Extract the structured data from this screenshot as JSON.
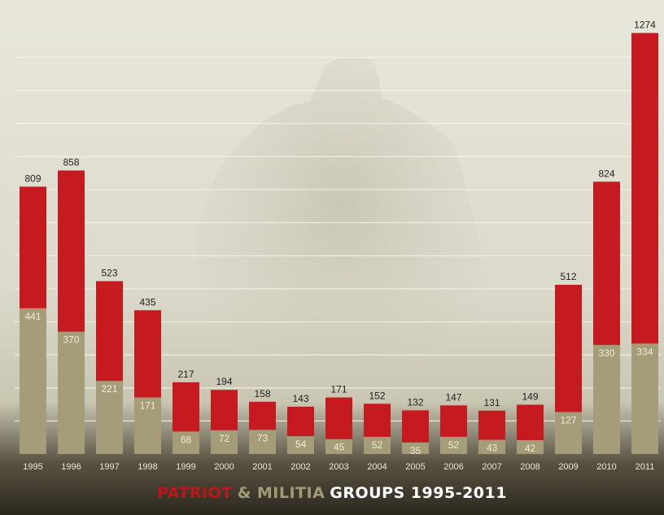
{
  "chart_data": {
    "type": "bar",
    "stacked": true,
    "categories": [
      "1995",
      "1996",
      "1997",
      "1998",
      "1999",
      "2000",
      "2001",
      "2002",
      "2003",
      "2004",
      "2005",
      "2006",
      "2007",
      "2008",
      "2009",
      "2010",
      "2011"
    ],
    "totals": [
      809,
      858,
      523,
      435,
      217,
      194,
      158,
      143,
      171,
      152,
      132,
      147,
      131,
      149,
      512,
      824,
      1274
    ],
    "series": [
      {
        "values": [
          441,
          370,
          221,
          171,
          68,
          72,
          73,
          54,
          45,
          52,
          35,
          52,
          43,
          42,
          127,
          330,
          334
        ],
        "color": "#a59c7a"
      },
      {
        "values": [
          368,
          488,
          302,
          264,
          149,
          122,
          85,
          89,
          126,
          100,
          97,
          95,
          88,
          107,
          385,
          494,
          940
        ],
        "color": "#c41a20"
      }
    ],
    "title": {
      "word1": "PATRIOT",
      "word2": "& MILITIA",
      "word3": "GROUPS 1995-2011"
    },
    "ylim": [
      0,
      1300
    ],
    "grid": true,
    "colors": {
      "title_word1": "#c0141b",
      "title_word2": "#a39a78",
      "title_word3": "#ffffff"
    }
  }
}
